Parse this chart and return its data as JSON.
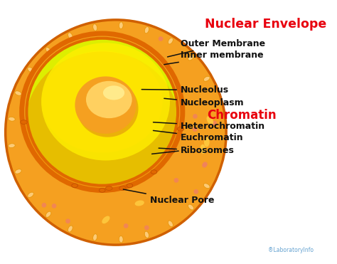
{
  "bg_color": "#ffffff",
  "title": "Nuclear Envelope",
  "title_color": "#e8000e",
  "title_fontsize": 12.5,
  "watermark": "LaboratoryInfo",
  "labels": {
    "outer_membrane": "Outer Membrane",
    "inner_membrane": "Inner membrane",
    "nucleolus": "Nucleolus",
    "nucleoplasm": "Nucleoplasm",
    "chromatin": "Chromatin",
    "heterochromatin": "Heterochromatin",
    "euchromatin": "Euchromatin",
    "ribosomes": "Ribosomes",
    "nuclear_pore": "Nuclear Pore"
  },
  "colors": {
    "outer_cell_fill": "#F5A020",
    "outer_cell_edge": "#D06000",
    "nucleus_fill_yellow": "#FFE500",
    "nucleus_fill_green": "#DDEE00",
    "membrane_orange": "#E06800",
    "membrane_dark": "#C05000",
    "chromatin_orange": "#F09000",
    "nucleoplasm_yellow": "#FFEE00",
    "nucleolus_main": "#F5A020",
    "nucleolus_light": "#FFD060",
    "nucleolus_highlight": "#FFEE90",
    "chromatin_shadow": "#E09010",
    "ribosome_oval": "#F0C060",
    "ribosome_pink": "#F0A080",
    "pore_fill": "#E06800",
    "annotation_color": "#000000"
  }
}
